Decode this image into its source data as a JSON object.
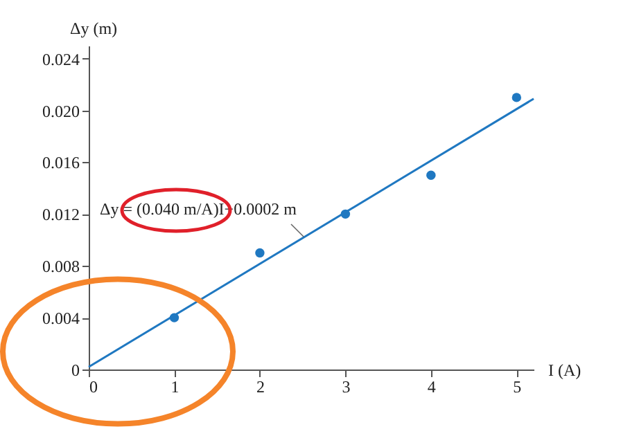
{
  "chart_data": {
    "type": "scatter",
    "xlabel": "I (A)",
    "ylabel": "Δy (m)",
    "annotations": [
      "Δy = (0.040 m/A)I+0.0002 m"
    ],
    "xlim": [
      0,
      5.2
    ],
    "ylim": [
      0,
      0.025
    ],
    "xticks": [
      0,
      1,
      2,
      3,
      4,
      5
    ],
    "yticks": [
      0,
      0.004,
      0.008,
      0.012,
      0.016,
      {
        "value": 0.02,
        "label": "0.020"
      },
      0.024
    ],
    "grid": false,
    "marker": "circle",
    "series": [
      {
        "color": "#1f78c1",
        "x": [
          1,
          2,
          3,
          4,
          5
        ],
        "values": [
          0.004,
          0.009,
          0.012,
          0.015,
          0.021
        ]
      },
      {
        "type": "line",
        "color": "#1f78c1",
        "x": [
          0,
          5.2
        ],
        "values": [
          0.0002,
          0.0209
        ],
        "marker": "none"
      }
    ]
  }
}
